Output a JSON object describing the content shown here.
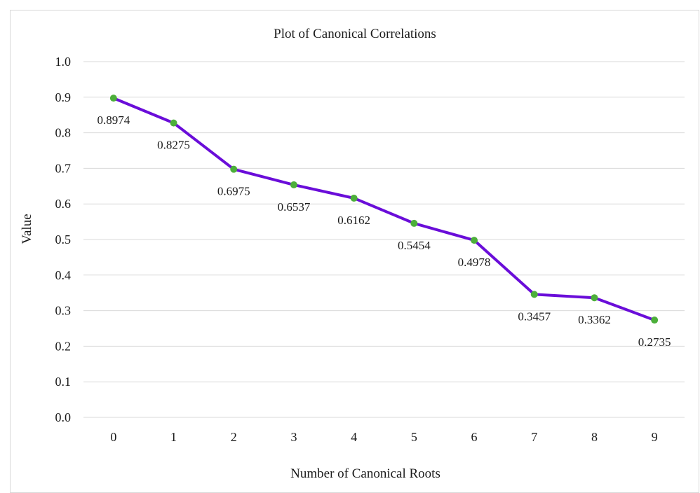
{
  "chart_data": {
    "type": "line",
    "title": "Plot of Canonical Correlations",
    "xlabel": "Number of Canonical Roots",
    "ylabel": "Value",
    "x": [
      0,
      1,
      2,
      3,
      4,
      5,
      6,
      7,
      8,
      9
    ],
    "x_tick_labels": [
      "0",
      "1",
      "2",
      "3",
      "4",
      "5",
      "6",
      "7",
      "8",
      "9"
    ],
    "series": [
      {
        "values": [
          0.8974,
          0.8275,
          0.6975,
          0.6537,
          0.6162,
          0.5454,
          0.4978,
          0.3457,
          0.3362,
          0.2735
        ],
        "data_labels": [
          "0.8974",
          "0.8275",
          "0.6975",
          "0.6537",
          "0.6162",
          "0.5454",
          "0.4978",
          "0.3457",
          "0.3362",
          "0.2735"
        ]
      }
    ],
    "ylim": [
      0,
      1
    ],
    "y_tick_labels": [
      "0.0",
      "0.1",
      "0.2",
      "0.3",
      "0.4",
      "0.5",
      "0.6",
      "0.7",
      "0.8",
      "0.9",
      "1.0"
    ],
    "grid": true,
    "legend": "none",
    "colors": {
      "line": "#6a0dd9",
      "marker": "#4caf3a",
      "grid": "#d9d9d9"
    }
  }
}
